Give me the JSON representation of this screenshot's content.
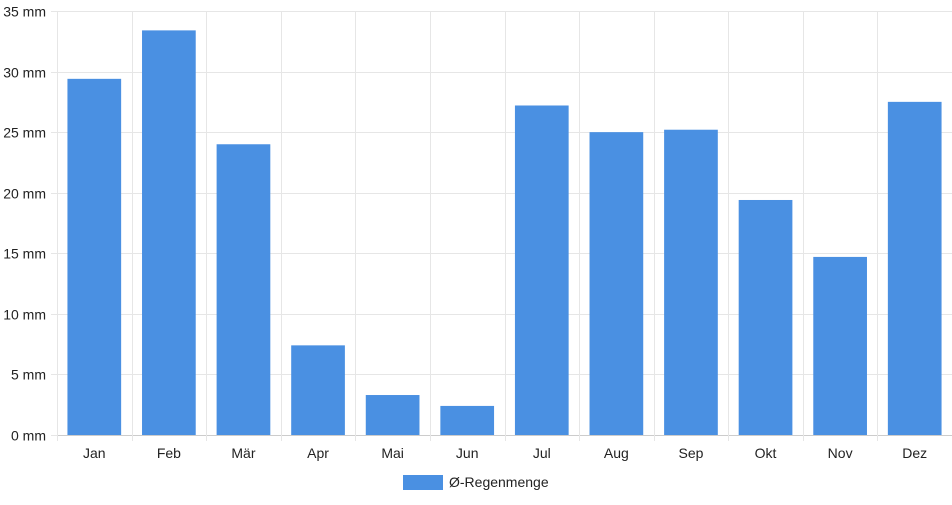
{
  "colors": {
    "bar": "#4a90e2",
    "grid": "#e6e6e6",
    "axis": "#cccccc",
    "text": "#222222"
  },
  "chart_data": {
    "type": "bar",
    "title": "",
    "xlabel": "",
    "ylabel": "",
    "categories": [
      "Jan",
      "Feb",
      "Mär",
      "Apr",
      "Mai",
      "Jun",
      "Jul",
      "Aug",
      "Sep",
      "Okt",
      "Nov",
      "Dez"
    ],
    "series": [
      {
        "name": "Ø-Regenmenge",
        "values": [
          29.4,
          33.4,
          24.0,
          7.4,
          3.3,
          2.4,
          27.2,
          25.0,
          25.2,
          19.4,
          14.7,
          27.5
        ]
      }
    ],
    "ylim": [
      0,
      35
    ],
    "yticks": [
      0,
      5,
      10,
      15,
      20,
      25,
      30,
      35
    ],
    "ytick_labels": [
      "0 mm",
      "5 mm",
      "10 mm",
      "15 mm",
      "20 mm",
      "25 mm",
      "30 mm",
      "35 mm"
    ],
    "grid": true,
    "legend_position": "bottom-center"
  }
}
